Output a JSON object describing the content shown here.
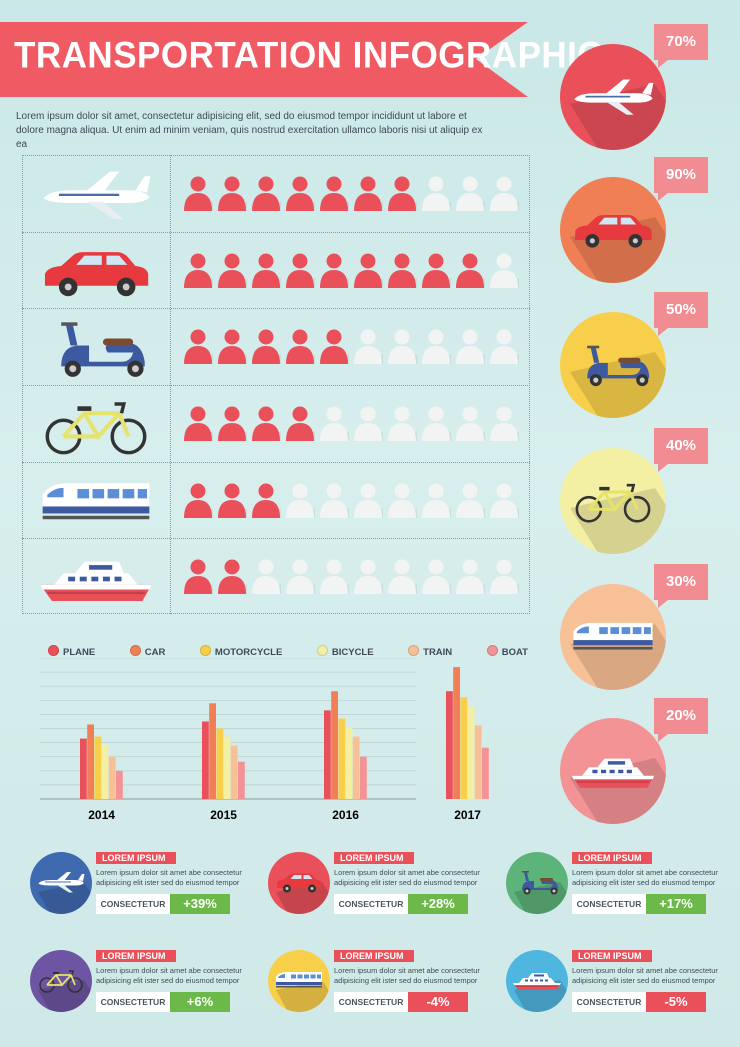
{
  "header": {
    "title": "TRANSPORTATION INFOGRAPHIC",
    "intro": "Lorem ipsum dolor sit amet, consectetur adipisicing elit, sed do eiusmod tempor incididunt ut labore et dolore magna aliqua. Ut enim ad minim veniam, quis nostrud exercitation ullamco laboris nisi ut aliquip ex ea"
  },
  "colors": {
    "red": "#e9505a",
    "white_person": "#f2f4f4",
    "bg": "#cfe9e8"
  },
  "rows": [
    {
      "vehicle": "plane-icon",
      "filled": 7,
      "total": 10
    },
    {
      "vehicle": "car-icon",
      "filled": 9,
      "total": 10
    },
    {
      "vehicle": "scooter-icon",
      "filled": 5,
      "total": 10
    },
    {
      "vehicle": "bicycle-icon",
      "filled": 4,
      "total": 10
    },
    {
      "vehicle": "train-icon",
      "filled": 3,
      "total": 10
    },
    {
      "vehicle": "boat-icon",
      "filled": 2,
      "total": 10
    }
  ],
  "percent_circles": [
    {
      "vehicle": "plane-icon",
      "percent": "70%",
      "color": "#e9505a"
    },
    {
      "vehicle": "car-icon",
      "percent": "90%",
      "color": "#f07f55"
    },
    {
      "vehicle": "scooter-icon",
      "percent": "50%",
      "color": "#f8cf4a"
    },
    {
      "vehicle": "bicycle-icon",
      "percent": "40%",
      "color": "#f3f0a3"
    },
    {
      "vehicle": "train-icon",
      "percent": "30%",
      "color": "#f7c096"
    },
    {
      "vehicle": "boat-icon",
      "percent": "20%",
      "color": "#f39396"
    }
  ],
  "chart_data": {
    "type": "bar",
    "categories": [
      "2014",
      "2015",
      "2016",
      "2017"
    ],
    "series": [
      {
        "name": "PLANE",
        "color": "#e9505a",
        "values": [
          60,
          77,
          88,
          107
        ]
      },
      {
        "name": "CAR",
        "color": "#f07f55",
        "values": [
          74,
          95,
          107,
          131
        ]
      },
      {
        "name": "MOTORCYCLE",
        "color": "#f8cf4a",
        "values": [
          62,
          70,
          80,
          101
        ]
      },
      {
        "name": "BICYCLE",
        "color": "#f3f0a3",
        "values": [
          54,
          62,
          71,
          92
        ]
      },
      {
        "name": "TRAIN",
        "color": "#f7c096",
        "values": [
          42,
          53,
          62,
          73
        ]
      },
      {
        "name": "BOAT",
        "color": "#f39396",
        "values": [
          28,
          37,
          42,
          51
        ]
      }
    ],
    "ylim": [
      0,
      140
    ],
    "grid": true,
    "legend": "top"
  },
  "stats": [
    {
      "icon": "plane-icon",
      "color": "#3f6ab0",
      "label": "LOREM IPSUM",
      "desc": "Lorem ipsum dolor sit amet abe consectetur adipisicing elit ister sed do eiusmod tempor",
      "key": "CONSECTETUR",
      "value": "+39%",
      "value_color": "#6cb94a"
    },
    {
      "icon": "car-icon",
      "color": "#e9505a",
      "label": "LOREM IPSUM",
      "desc": "Lorem ipsum dolor sit amet abe consectetur adipisicing elit ister sed do eiusmod tempor",
      "key": "CONSECTETUR",
      "value": "+28%",
      "value_color": "#6cb94a"
    },
    {
      "icon": "scooter-icon",
      "color": "#5cb47a",
      "label": "LOREM IPSUM",
      "desc": "Lorem ipsum dolor sit amet abe consectetur adipisicing elit ister sed do eiusmod tempor",
      "key": "CONSECTETUR",
      "value": "+17%",
      "value_color": "#6cb94a"
    },
    {
      "icon": "bicycle-icon",
      "color": "#6e55a3",
      "label": "LOREM IPSUM",
      "desc": "Lorem ipsum dolor sit amet abe consectetur adipisicing elit ister sed do eiusmod tempor",
      "key": "CONSECTETUR",
      "value": "+6%",
      "value_color": "#6cb94a"
    },
    {
      "icon": "train-icon",
      "color": "#f8cf4a",
      "label": "LOREM IPSUM",
      "desc": "Lorem ipsum dolor sit amet abe consectetur adipisicing elit ister sed do eiusmod tempor",
      "key": "CONSECTETUR",
      "value": "-4%",
      "value_color": "#e9505a"
    },
    {
      "icon": "boat-icon",
      "color": "#4fb6e0",
      "label": "LOREM IPSUM",
      "desc": "Lorem ipsum dolor sit amet abe consectetur adipisicing elit ister sed do eiusmod tempor",
      "key": "CONSECTETUR",
      "value": "-5%",
      "value_color": "#e9505a"
    }
  ]
}
